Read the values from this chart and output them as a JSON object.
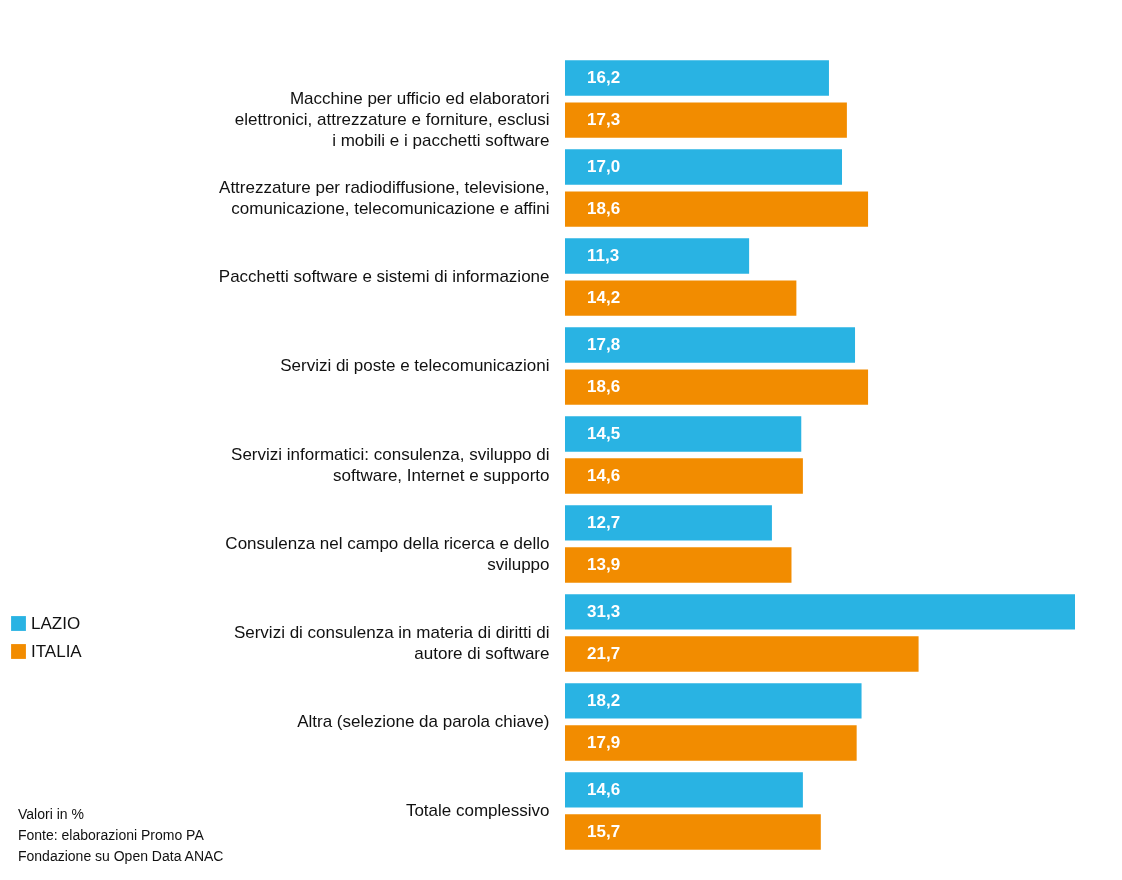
{
  "chart_data": {
    "type": "bar",
    "orientation": "horizontal",
    "categories": [
      "Macchine per ufficio ed elaboratori elettronici, attrezzature e forniture, esclusi i mobili e i pacchetti software",
      "Attrezzature per radiodiffusione, televisione, comunicazione, telecomunicazione e affini",
      "Pacchetti software e sistemi di informazione",
      "Servizi di poste e telecomunicazioni",
      "Servizi informatici: consulenza, sviluppo di software, Internet e supporto",
      "Consulenza nel campo della ricerca e dello sviluppo",
      "Servizi di consulenza in materia di diritti di autore di software",
      "Altra (selezione da parola chiave)",
      "Totale complessivo"
    ],
    "series": [
      {
        "name": "LAZIO",
        "color": "#29b3e3",
        "values": [
          16.2,
          17.0,
          11.3,
          17.8,
          14.5,
          12.7,
          31.3,
          18.2,
          14.6
        ],
        "value_labels": [
          "16,2",
          "17,0",
          "11,3",
          "17,8",
          "14,5",
          "12,7",
          "31,3",
          "18,2",
          "14,6"
        ]
      },
      {
        "name": "ITALIA",
        "color": "#f28c00",
        "values": [
          17.3,
          18.6,
          14.2,
          18.6,
          14.6,
          13.9,
          21.7,
          17.9,
          15.7
        ],
        "value_labels": [
          "17,3",
          "18,6",
          "14,2",
          "18,6",
          "14,6",
          "13,9",
          "21,7",
          "17,9",
          "15,7"
        ]
      }
    ],
    "legend": "left",
    "annotations": [
      "Valori in %",
      "Fonte: elaborazioni Promo PA Fondazione su Open Data ANAC"
    ]
  }
}
